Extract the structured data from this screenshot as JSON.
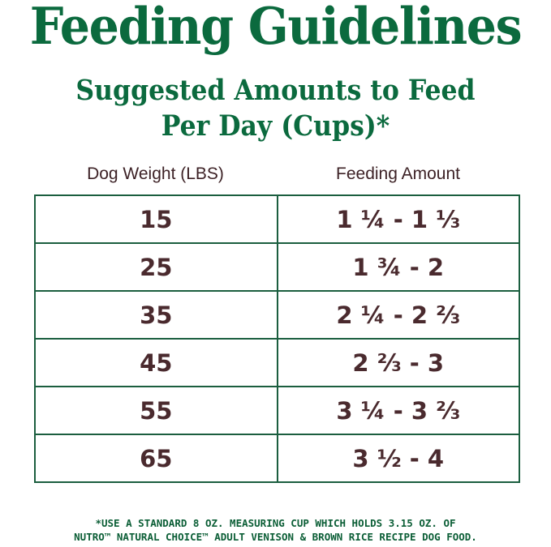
{
  "title": "Feeding Guidelines",
  "subtitle_line1": "Suggested Amounts to Feed",
  "subtitle_line2": "Per Day (Cups)*",
  "table": {
    "headers": [
      "Dog Weight (LBS)",
      "Feeding Amount"
    ],
    "rows": [
      {
        "weight": "15",
        "amount": "1 ¼ - 1 ⅓"
      },
      {
        "weight": "25",
        "amount": "1 ¾ - 2"
      },
      {
        "weight": "35",
        "amount": "2 ¼ - 2 ⅔"
      },
      {
        "weight": "45",
        "amount": "2 ⅔ - 3"
      },
      {
        "weight": "55",
        "amount": "3 ¼ - 3 ⅔"
      },
      {
        "weight": "65",
        "amount": "3 ½ - 4"
      }
    ]
  },
  "footnote_line1": "*USE A STANDARD 8 OZ. MEASURING CUP WHICH HOLDS 3.15 OZ. OF",
  "footnote_line2": "NUTRO™ NATURAL CHOICE™ ADULT VENISON & BROWN RICE RECIPE DOG FOOD.",
  "colors": {
    "title": "#0b6a3e",
    "table_border": "#1b5e3f",
    "text": "#4a2a2e"
  }
}
